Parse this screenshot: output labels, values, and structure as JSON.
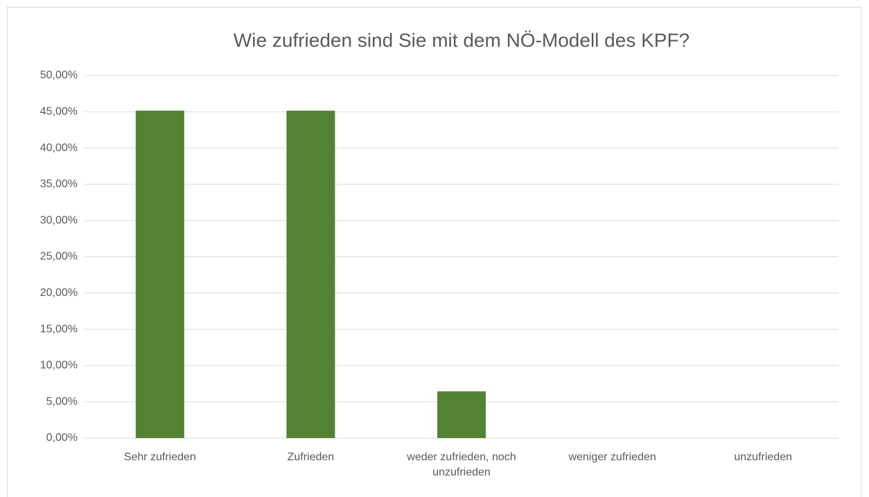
{
  "chart_data": {
    "type": "bar",
    "title": "Wie zufrieden sind Sie mit dem NÖ-Modell des KPF?",
    "categories": [
      "Sehr zufrieden",
      "Zufrieden",
      "weder zufrieden, noch unzufrieden",
      "weniger zufrieden",
      "unzufrieden"
    ],
    "values": [
      45.16,
      45.16,
      6.45,
      0,
      0
    ],
    "color": "#548235",
    "ylim": [
      0,
      50
    ],
    "yticks": [
      {
        "value": 0,
        "label": "0,00%"
      },
      {
        "value": 5,
        "label": "5,00%"
      },
      {
        "value": 10,
        "label": "10,00%"
      },
      {
        "value": 15,
        "label": "15,00%"
      },
      {
        "value": 20,
        "label": "20,00%"
      },
      {
        "value": 25,
        "label": "25,00%"
      },
      {
        "value": 30,
        "label": "30,00%"
      },
      {
        "value": 35,
        "label": "35,00%"
      },
      {
        "value": 40,
        "label": "40,00%"
      },
      {
        "value": 45,
        "label": "45,00%"
      },
      {
        "value": 50,
        "label": "50,00%"
      }
    ],
    "grid": true
  }
}
